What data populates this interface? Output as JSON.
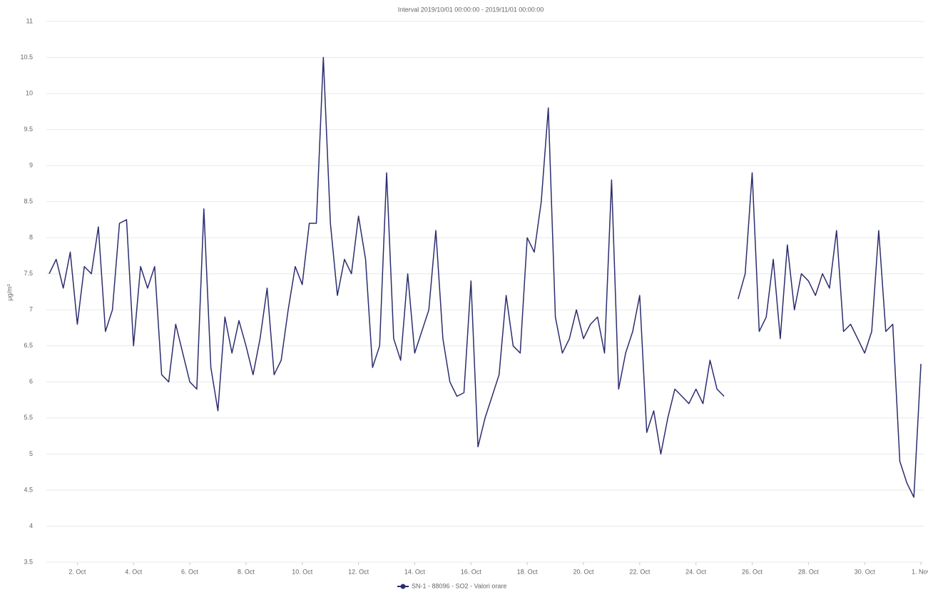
{
  "chart_data": {
    "type": "line",
    "title": "Interval 2019/10/01 00:00:00 - 2019/11/01 00:00:00",
    "ylabel": "µg/m³",
    "x": [
      0,
      0.25,
      0.5,
      0.75,
      1,
      1.25,
      1.5,
      1.75,
      2,
      2.25,
      2.5,
      2.75,
      3,
      3.25,
      3.5,
      3.75,
      4,
      4.25,
      4.5,
      4.75,
      5,
      5.25,
      5.5,
      5.75,
      6,
      6.25,
      6.5,
      6.75,
      7,
      7.25,
      7.5,
      7.75,
      8,
      8.25,
      8.5,
      8.75,
      9,
      9.25,
      9.5,
      9.75,
      10,
      10.25,
      10.5,
      10.75,
      11,
      11.25,
      11.5,
      11.75,
      12,
      12.25,
      12.5,
      12.75,
      13,
      13.25,
      13.5,
      13.75,
      14,
      14.25,
      14.5,
      14.75,
      15,
      15.25,
      15.5,
      15.75,
      16,
      16.25,
      16.5,
      16.75,
      17,
      17.25,
      17.5,
      17.75,
      18,
      18.25,
      18.5,
      18.75,
      19,
      19.25,
      19.5,
      19.75,
      20,
      20.25,
      20.5,
      20.75,
      21,
      21.25,
      21.5,
      21.75,
      22,
      22.25,
      22.5,
      22.75,
      23,
      23.25,
      23.5,
      23.75,
      24,
      24.25,
      24.5,
      24.75,
      25,
      25.25,
      25.5,
      25.75,
      26,
      26.25,
      26.5,
      26.75,
      27,
      27.25,
      27.5,
      27.75,
      28,
      28.25,
      28.5,
      28.75,
      29,
      29.25,
      29.5,
      29.75,
      30,
      30.25,
      30.5,
      30.75,
      31
    ],
    "series": [
      {
        "name": "SN-1 - 88096 - SO2 - Valori orare",
        "color": "#2b2d6e",
        "values": [
          7.5,
          7.7,
          7.3,
          7.8,
          6.8,
          7.6,
          7.5,
          8.15,
          6.7,
          7.0,
          8.2,
          8.25,
          6.5,
          7.6,
          7.3,
          7.6,
          6.1,
          6.0,
          6.8,
          6.4,
          6.0,
          5.9,
          8.4,
          6.2,
          5.6,
          6.9,
          6.4,
          6.85,
          6.5,
          6.1,
          6.6,
          7.3,
          6.1,
          6.3,
          7.0,
          7.6,
          7.35,
          8.2,
          8.2,
          10.5,
          8.2,
          7.2,
          7.7,
          7.5,
          8.3,
          7.7,
          6.2,
          6.5,
          8.9,
          6.6,
          6.3,
          7.5,
          6.4,
          6.7,
          7.0,
          8.1,
          6.6,
          6.0,
          5.8,
          5.85,
          7.4,
          5.1,
          5.5,
          5.8,
          6.1,
          7.2,
          6.5,
          6.4,
          8.0,
          7.8,
          8.5,
          9.8,
          6.9,
          6.4,
          6.6,
          7.0,
          6.6,
          6.8,
          6.9,
          6.4,
          8.8,
          5.9,
          6.4,
          6.7,
          7.2,
          5.3,
          5.6,
          5.0,
          5.5,
          5.9,
          5.8,
          5.7,
          5.9,
          5.7,
          6.3,
          5.9,
          5.8,
          null,
          7.15,
          7.5,
          8.9,
          6.7,
          6.9,
          7.7,
          6.6,
          7.9,
          7.0,
          7.5,
          7.4,
          7.2,
          7.5,
          7.3,
          8.1,
          6.7,
          6.8,
          6.6,
          6.4,
          6.7,
          8.1,
          6.7,
          6.8,
          4.9,
          4.6,
          4.4,
          6.25
        ]
      }
    ],
    "xlim": [
      -0.1,
      31.1
    ],
    "xticks": [
      {
        "value": 1,
        "label": "2. Oct"
      },
      {
        "value": 3,
        "label": "4. Oct"
      },
      {
        "value": 5,
        "label": "6. Oct"
      },
      {
        "value": 7,
        "label": "8. Oct"
      },
      {
        "value": 9,
        "label": "10. Oct"
      },
      {
        "value": 11,
        "label": "12. Oct"
      },
      {
        "value": 13,
        "label": "14. Oct"
      },
      {
        "value": 15,
        "label": "16. Oct"
      },
      {
        "value": 17,
        "label": "18. Oct"
      },
      {
        "value": 19,
        "label": "20. Oct"
      },
      {
        "value": 21,
        "label": "22. Oct"
      },
      {
        "value": 23,
        "label": "24. Oct"
      },
      {
        "value": 25,
        "label": "26. Oct"
      },
      {
        "value": 27,
        "label": "28. Oct"
      },
      {
        "value": 29,
        "label": "30. Oct"
      },
      {
        "value": 31,
        "label": "1. Nov"
      }
    ],
    "ylim": [
      3.5,
      11
    ],
    "yticks": [
      3.5,
      4,
      4.5,
      5,
      5.5,
      6,
      6.5,
      7,
      7.5,
      8,
      8.5,
      9,
      9.5,
      10,
      10.5,
      11
    ],
    "grid": true
  }
}
